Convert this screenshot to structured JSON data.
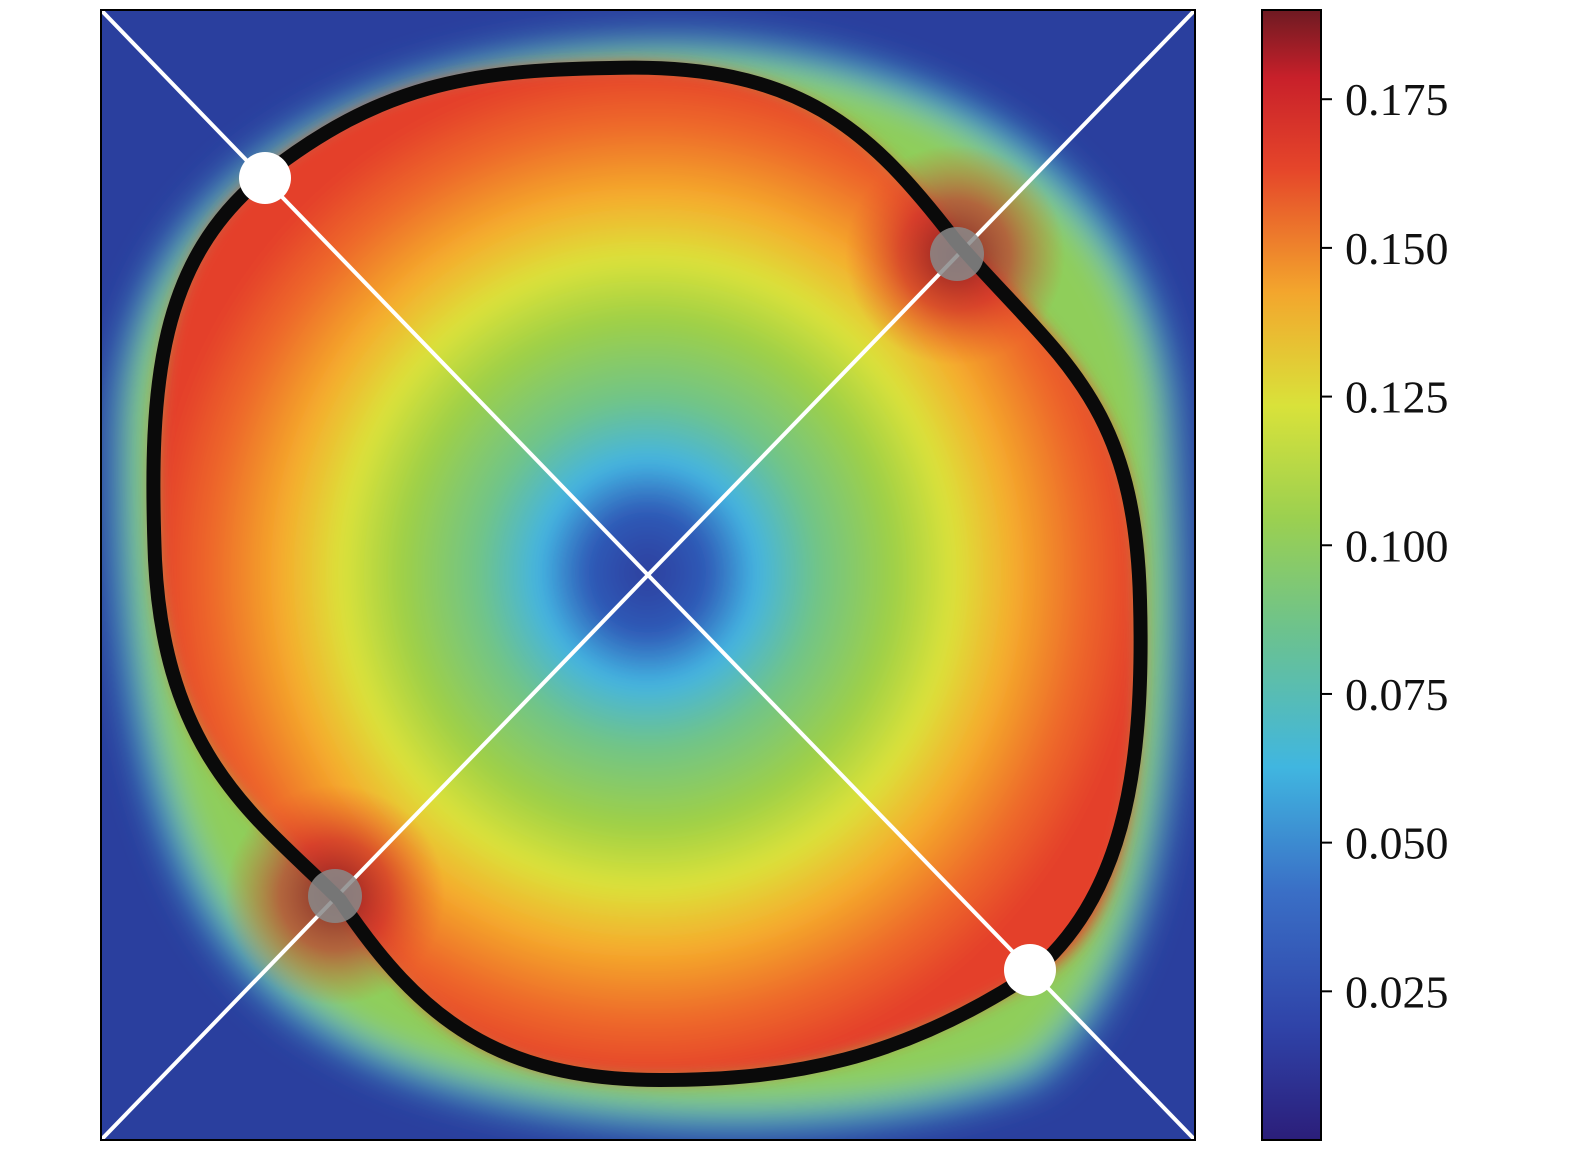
{
  "chart_data": {
    "type": "heatmap",
    "title": "",
    "xlabel": "",
    "ylabel": "",
    "grid": false,
    "legend": "none",
    "colormap": "jet",
    "colorbar": {
      "position": "right",
      "range": [
        0.0,
        0.19
      ],
      "ticks": [
        0.025,
        0.05,
        0.075,
        0.1,
        0.125,
        0.15,
        0.175
      ],
      "tick_labels": [
        "0.025",
        "0.050",
        "0.075",
        "0.100",
        "0.125",
        "0.150",
        "0.175"
      ]
    },
    "field": {
      "description_values": {
        "center_min": 0.0,
        "ring_peak": 0.175,
        "background_outside": 0.01
      }
    },
    "overlays": {
      "interface_curve_color": "#0a0a0a",
      "diagonal_line_color": "#ffffff",
      "markers": [
        {
          "name": "upper-left-white",
          "color": "#ffffff"
        },
        {
          "name": "upper-right-gray",
          "color": "#8a8a8a"
        },
        {
          "name": "lower-left-gray",
          "color": "#8a8a8a"
        },
        {
          "name": "lower-right-white",
          "color": "#ffffff"
        }
      ]
    }
  }
}
